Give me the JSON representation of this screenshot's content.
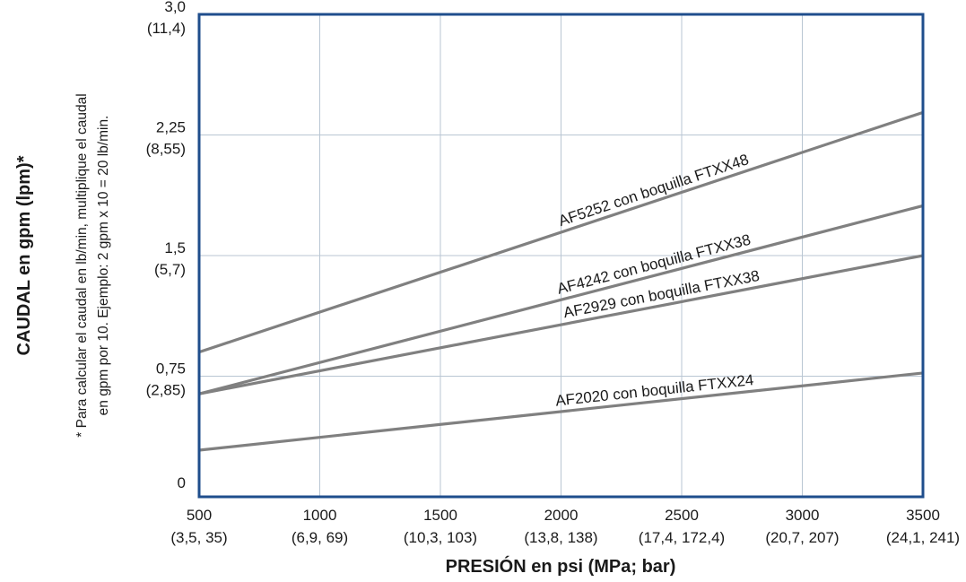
{
  "chart_data": {
    "type": "line",
    "xlabel": "PRESIÓN en psi (MPa; bar)",
    "ylabel": "CAUDAL en gpm (lpm)*",
    "footnote": [
      "* Para calcular el caudal en lb/min, multiplique el caudal",
      "en gpm por 10. Ejemplo: 2 gpm x 10 = 20 lb/min."
    ],
    "xlim": [
      500,
      3500
    ],
    "ylim": [
      0,
      3.0
    ],
    "grid": true,
    "x_ticks": [
      {
        "value": 500,
        "label": "500",
        "sublabel": "(3,5, 35)"
      },
      {
        "value": 1000,
        "label": "1000",
        "sublabel": "(6,9, 69)"
      },
      {
        "value": 1500,
        "label": "1500",
        "sublabel": "(10,3, 103)"
      },
      {
        "value": 2000,
        "label": "2000",
        "sublabel": "(13,8, 138)"
      },
      {
        "value": 2500,
        "label": "2500",
        "sublabel": "(17,4, 172,4)"
      },
      {
        "value": 3000,
        "label": "3000",
        "sublabel": "(20,7, 207)"
      },
      {
        "value": 3500,
        "label": "3500",
        "sublabel": "(24,1, 241)"
      }
    ],
    "y_ticks": [
      {
        "value": 0,
        "label": "0",
        "sublabel": ""
      },
      {
        "value": 0.75,
        "label": "0,75",
        "sublabel": "(2,85)"
      },
      {
        "value": 1.5,
        "label": "1,5",
        "sublabel": "(5,7)"
      },
      {
        "value": 2.25,
        "label": "2,25",
        "sublabel": "(8,55)"
      },
      {
        "value": 3.0,
        "label": "3,0",
        "sublabel": "(11,4)"
      }
    ],
    "series": [
      {
        "name": "AF5252 con boquilla FTXX48",
        "x": [
          500,
          3500
        ],
        "y": [
          0.9,
          2.39
        ]
      },
      {
        "name": "AF4242 con boquilla FTXX38",
        "x": [
          500,
          3500
        ],
        "y": [
          0.64,
          1.81
        ]
      },
      {
        "name": "AF2929 con boquilla FTXX38",
        "x": [
          500,
          3500
        ],
        "y": [
          0.64,
          1.5
        ]
      },
      {
        "name": "AF2020 con boquilla FTXX24",
        "x": [
          500,
          3500
        ],
        "y": [
          0.29,
          0.77
        ]
      }
    ],
    "colors": {
      "frame": "#1f4e8c",
      "grid": "#b9c6d3",
      "line": "#808080",
      "text": "#1a1a1a"
    }
  }
}
